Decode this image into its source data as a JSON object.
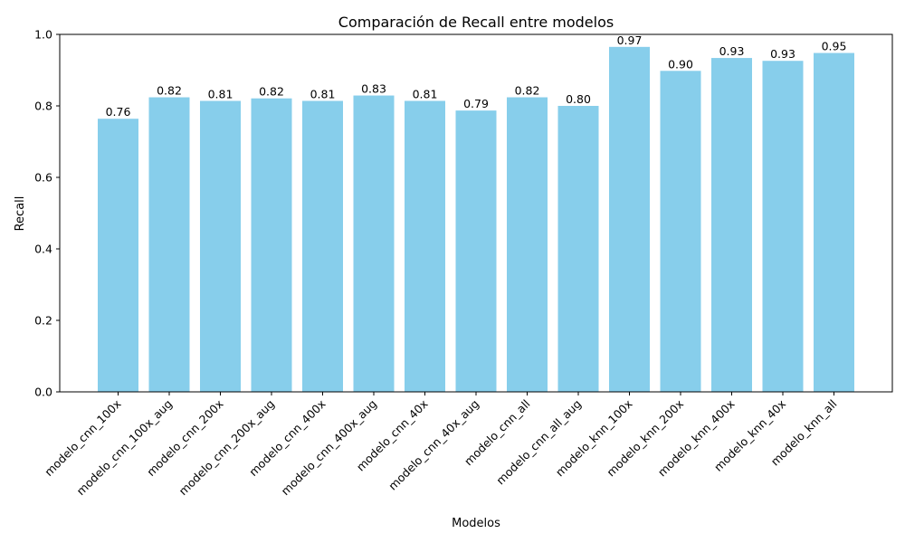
{
  "chart_data": {
    "type": "bar",
    "title": "Comparación de Recall entre modelos",
    "xlabel": "Modelos",
    "ylabel": "Recall",
    "ylim": [
      0,
      1.0
    ],
    "yticks": [
      "0.0",
      "0.2",
      "0.4",
      "0.6",
      "0.8",
      "1.0"
    ],
    "grid": false,
    "bar_color": "#87ceeb",
    "categories": [
      "modelo_cnn_100x",
      "modelo_cnn_100x_aug",
      "modelo_cnn_200x",
      "modelo_cnn_200x_aug",
      "modelo_cnn_400x",
      "modelo_cnn_400x_aug",
      "modelo_cnn_40x",
      "modelo_cnn_40x_aug",
      "modelo_cnn_all",
      "modelo_cnn_all_aug",
      "modelo_knn_100x",
      "modelo_knn_200x",
      "modelo_knn_400x",
      "modelo_knn_40x",
      "modelo_knn_all"
    ],
    "values": [
      0.764,
      0.824,
      0.814,
      0.821,
      0.814,
      0.829,
      0.814,
      0.787,
      0.824,
      0.8,
      0.965,
      0.898,
      0.934,
      0.926,
      0.948
    ],
    "value_labels": [
      "0.76",
      "0.82",
      "0.81",
      "0.82",
      "0.81",
      "0.83",
      "0.81",
      "0.79",
      "0.82",
      "0.80",
      "0.97",
      "0.90",
      "0.93",
      "0.93",
      "0.95"
    ]
  }
}
